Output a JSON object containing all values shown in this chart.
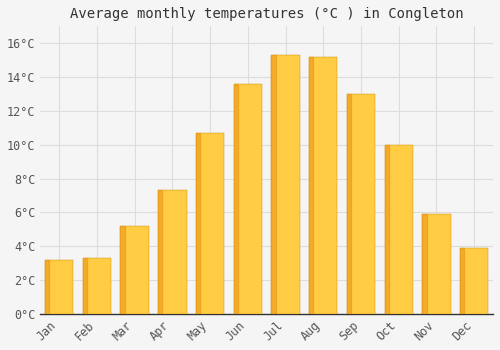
{
  "title": "Average monthly temperatures (°C ) in Congleton",
  "months": [
    "Jan",
    "Feb",
    "Mar",
    "Apr",
    "May",
    "Jun",
    "Jul",
    "Aug",
    "Sep",
    "Oct",
    "Nov",
    "Dec"
  ],
  "values": [
    3.2,
    3.3,
    5.2,
    7.3,
    10.7,
    13.6,
    15.3,
    15.2,
    13.0,
    10.0,
    5.9,
    3.9
  ],
  "bar_color_top": "#FFCC44",
  "bar_color_bottom": "#FFA020",
  "ylim": [
    0,
    17
  ],
  "yticks": [
    0,
    2,
    4,
    6,
    8,
    10,
    12,
    14,
    16
  ],
  "ytick_labels": [
    "0°C",
    "2°C",
    "4°C",
    "6°C",
    "8°C",
    "10°C",
    "12°C",
    "14°C",
    "16°C"
  ],
  "background_color": "#f5f5f5",
  "plot_bg_color": "#f5f5f5",
  "grid_color": "#dddddd",
  "title_fontsize": 10,
  "tick_fontsize": 8.5,
  "bar_width": 0.75,
  "figsize": [
    5.0,
    3.5
  ],
  "dpi": 100
}
